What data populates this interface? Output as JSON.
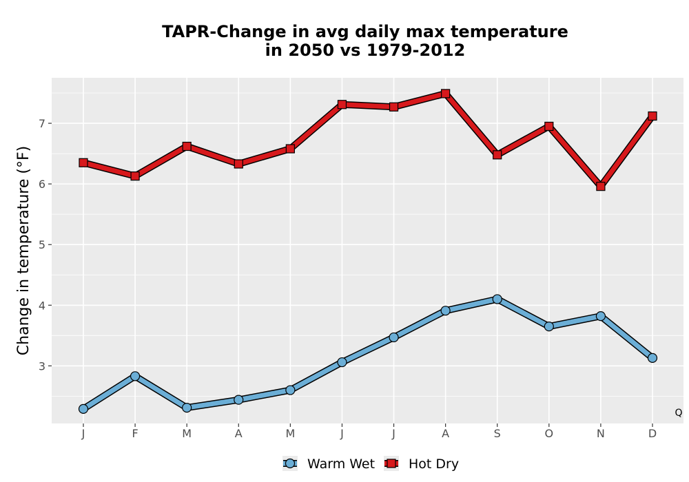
{
  "chart_data": {
    "type": "line",
    "title_lines": [
      "TAPR-Change in avg daily max temperature",
      "in 2050 vs 1979-2012"
    ],
    "xlabel": "",
    "ylabel": "Change in temperature (°F)",
    "categories": [
      "J",
      "F",
      "M",
      "A",
      "M",
      "J",
      "J",
      "A",
      "S",
      "O",
      "N",
      "D"
    ],
    "ylim": [
      2.05,
      7.75
    ],
    "yticks": [
      3,
      4,
      5,
      6,
      7
    ],
    "grid": true,
    "legend_position": "bottom",
    "series": [
      {
        "name": "Warm Wet",
        "marker": "circle",
        "color": "#6baed6",
        "values": [
          2.29,
          2.83,
          2.31,
          2.44,
          2.6,
          3.06,
          3.47,
          3.91,
          4.1,
          3.65,
          3.82,
          3.13
        ]
      },
      {
        "name": "Hot Dry",
        "marker": "square",
        "color": "#d7191c",
        "values": [
          6.35,
          6.13,
          6.62,
          6.33,
          6.58,
          7.31,
          7.27,
          7.49,
          6.48,
          6.95,
          5.96,
          7.12
        ]
      }
    ],
    "corner_label": "Q"
  }
}
